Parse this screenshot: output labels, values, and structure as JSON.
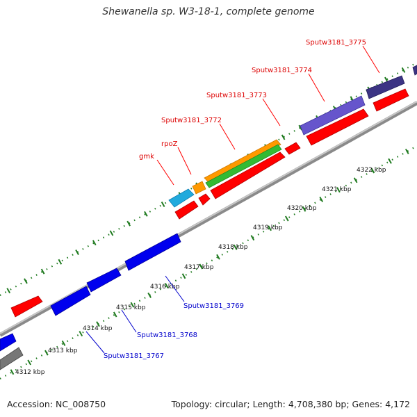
{
  "title": "Shewanella sp. W3-18-1, complete genome",
  "footer": {
    "accession": "Accession: NC_008750",
    "summary": "Topology: circular; Length: 4,708,380 bp; Genes: 4,172"
  },
  "colors": {
    "backbone": "#888888",
    "scale_ticks": "#1f7a1f",
    "forward_label": "#dd0000",
    "reverse_label": "#0000cc"
  },
  "scale": {
    "labels": [
      "4312 kbp",
      "4313 kbp",
      "4314 kbp",
      "4315 kbp",
      "4316 kbp",
      "4317 kbp",
      "4318 kbp",
      "4319 kbp",
      "4320 kbp",
      "4321 kbp",
      "4322 kbp"
    ]
  },
  "gene_labels": [
    {
      "text": "gmk",
      "strand": "forward"
    },
    {
      "text": "rpoZ",
      "strand": "forward"
    },
    {
      "text": "Sputw3181_3772",
      "strand": "forward"
    },
    {
      "text": "Sputw3181_3773",
      "strand": "forward"
    },
    {
      "text": "Sputw3181_3774",
      "strand": "forward"
    },
    {
      "text": "Sputw3181_3775",
      "strand": "forward"
    },
    {
      "text": "Sputw3181_3769",
      "strand": "reverse"
    },
    {
      "text": "Sputw3181_3768",
      "strand": "reverse"
    },
    {
      "text": "Sputw3181_3767",
      "strand": "reverse"
    }
  ],
  "features": [
    {
      "type": "CDS",
      "color": "#ff0000"
    },
    {
      "type": "gene",
      "color": "#0000ee"
    },
    {
      "type": "rRNA",
      "color": "#22aadd"
    },
    {
      "type": "tRNA",
      "color": "#ff9900"
    },
    {
      "type": "misc",
      "color": "#33bb33"
    },
    {
      "type": "region",
      "color": "#6655cc"
    },
    {
      "type": "pseudo",
      "color": "#777777"
    }
  ]
}
